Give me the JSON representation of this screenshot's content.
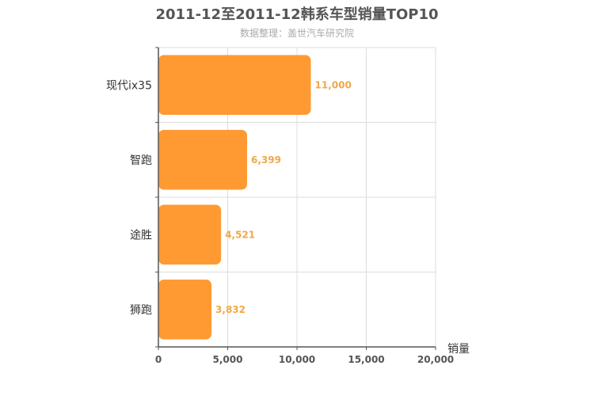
{
  "chart_data": {
    "type": "bar",
    "orientation": "horizontal",
    "title": "2011-12至2011-12韩系车型销量TOP10",
    "subtitle": "数据整理：盖世汽车研究院",
    "xlabel": "销量",
    "ylabel": "",
    "xlim": [
      0,
      20000
    ],
    "xticks": [
      "0",
      "5,000",
      "10,000",
      "15,000",
      "20,000"
    ],
    "tick_values": [
      0,
      5000,
      10000,
      15000,
      20000
    ],
    "categories": [
      "现代ix35",
      "智跑",
      "途胜",
      "狮跑"
    ],
    "values": [
      11000,
      6399,
      4521,
      3832
    ],
    "value_labels": [
      "11,000",
      "6,399",
      "4,521",
      "3,832"
    ],
    "grid": true,
    "bar_color": "#FF9A33",
    "label_color": "#F0A848"
  }
}
